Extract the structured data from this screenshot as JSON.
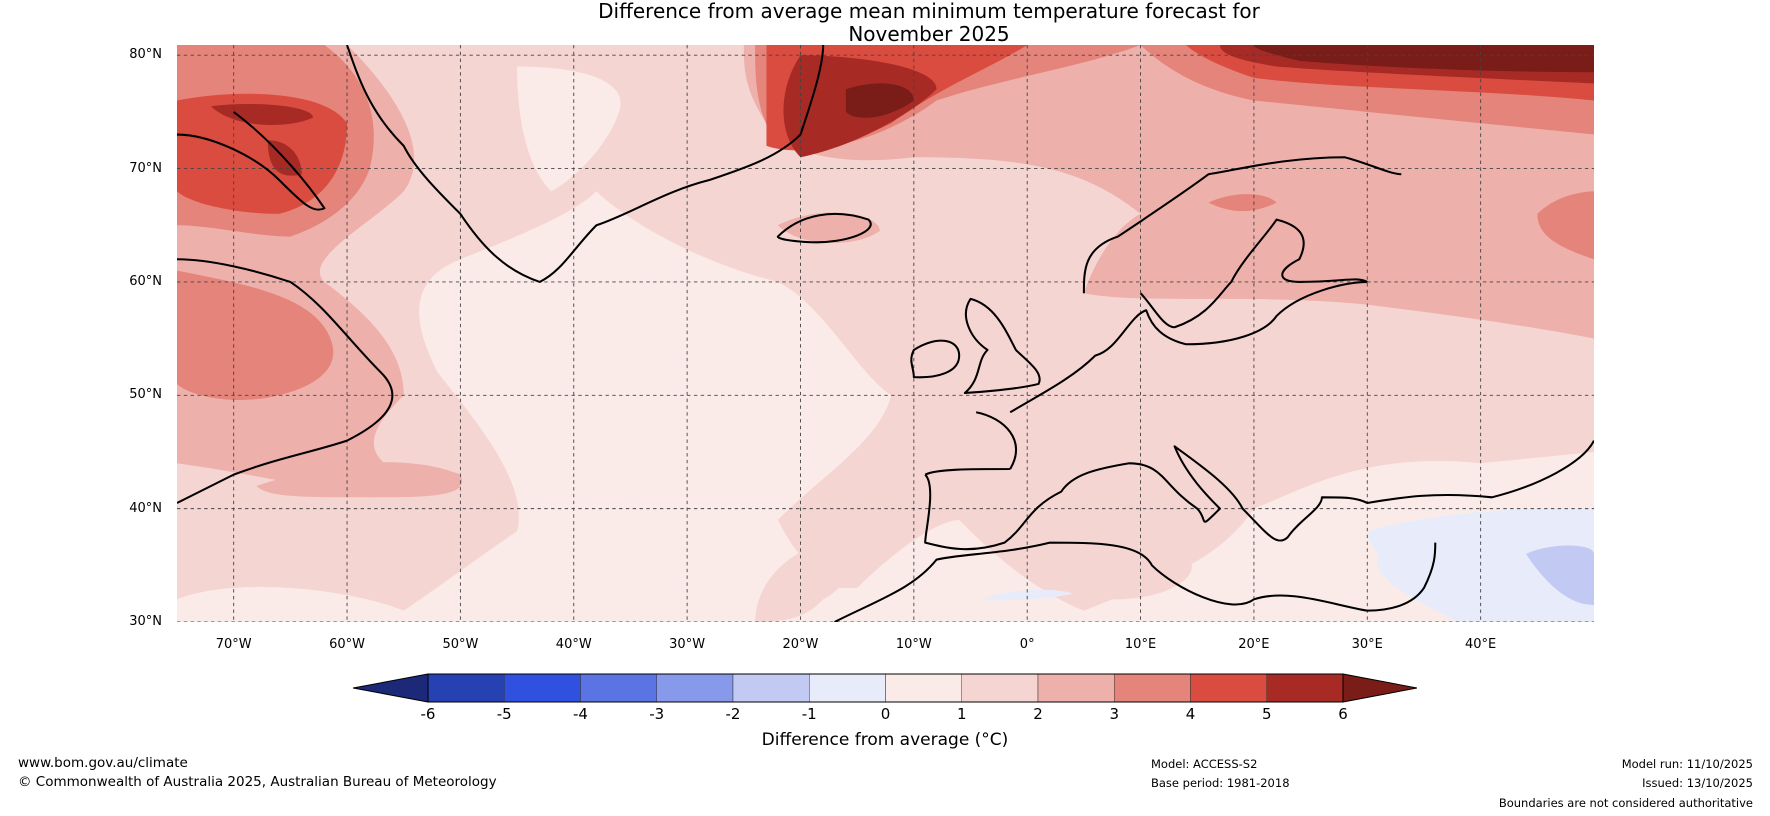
{
  "title": [
    "Difference from average mean minimum temperature forecast for",
    "November 2025"
  ],
  "map": {
    "lat_labels": [
      "80°N",
      "70°N",
      "60°N",
      "50°N",
      "40°N",
      "30°N"
    ],
    "lat_values": [
      80,
      70,
      60,
      50,
      40,
      30
    ],
    "lon_labels": [
      "70°W",
      "60°W",
      "50°W",
      "40°W",
      "30°W",
      "20°W",
      "10°W",
      "0°",
      "10°E",
      "20°E",
      "30°E",
      "40°E"
    ],
    "lon_values": [
      -70,
      -60,
      -50,
      -40,
      -30,
      -20,
      -10,
      0,
      10,
      20,
      30,
      40
    ],
    "extent": {
      "lon": [
        -75,
        50
      ],
      "lat": [
        30,
        80.9
      ]
    }
  },
  "colorbar": {
    "ticks": [
      "-6",
      "-5",
      "-4",
      "-3",
      "-2",
      "-1",
      "0",
      "1",
      "2",
      "3",
      "4",
      "5",
      "6"
    ],
    "colors": [
      "#2541b2",
      "#3050e0",
      "#5b74e4",
      "#8799ea",
      "#c2caf3",
      "#e8ecfa",
      "#fbebe8",
      "#f5d5d2",
      "#eeb0ab",
      "#e5847a",
      "#da4c40",
      "#a82a25"
    ],
    "under_color": "#1c2878",
    "over_color": "#7a1c17",
    "label": "Difference from average (°C)"
  },
  "footer": {
    "url": "www.bom.gov.au/climate",
    "copyright": "© Commonwealth of Australia 2025, Australian Bureau of Meteorology",
    "model": "Model: ACCESS-S2",
    "base_period": "Base period: 1981-2018",
    "model_run": "Model run: 11/10/2025",
    "issued": "Issued: 13/10/2025",
    "disclaimer": "Boundaries are not considered authoritative"
  }
}
